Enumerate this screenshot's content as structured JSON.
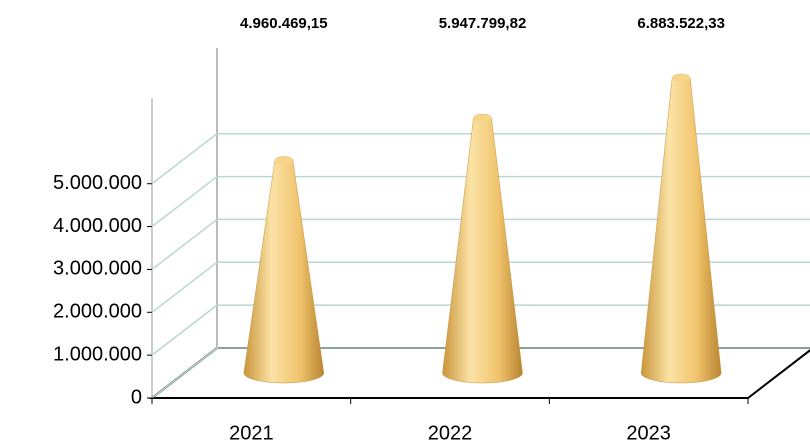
{
  "chart_data": {
    "type": "cone",
    "categories": [
      "2021",
      "2022",
      "2023"
    ],
    "values": [
      4960469.15,
      5947799.82,
      6883522.33
    ],
    "value_labels": [
      "4.960.469,15",
      "5.947.799,82",
      "6.883.522,33"
    ],
    "color": "#f2c46d",
    "ylim": [
      0,
      7000000
    ],
    "yticks": [
      {
        "value": 0,
        "label": "0"
      },
      {
        "value": 1000000,
        "label": "1.000.000"
      },
      {
        "value": 2000000,
        "label": "2.000.000"
      },
      {
        "value": 3000000,
        "label": "3.000.000"
      },
      {
        "value": 4000000,
        "label": "4.000.000"
      },
      {
        "value": 5000000,
        "label": "5.000.000"
      }
    ],
    "grid": true
  }
}
